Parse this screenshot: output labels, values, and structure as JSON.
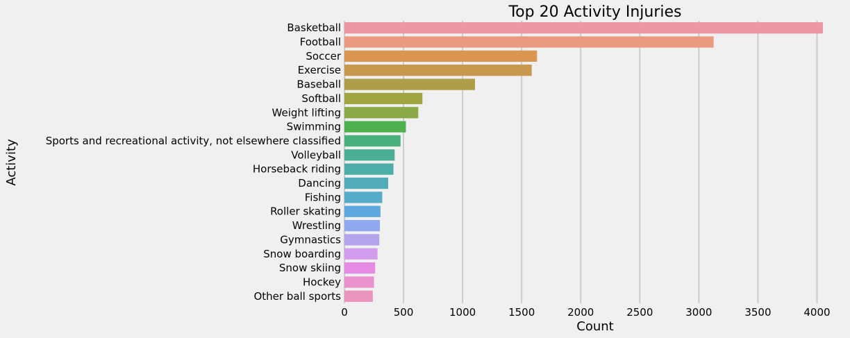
{
  "chart_data": {
    "type": "bar",
    "orientation": "horizontal",
    "title": "Top 20 Activity Injuries",
    "xlabel": "Count",
    "ylabel": "Activity",
    "xlim": [
      0,
      4250
    ],
    "xticks": [
      0,
      500,
      1000,
      1500,
      2000,
      2500,
      3000,
      3500,
      4000
    ],
    "grid": true,
    "categories": [
      "Basketball",
      "Football",
      "Soccer",
      "Exercise",
      "Baseball",
      "Softball",
      "Weight lifting",
      "Swimming",
      "Sports and recreational activity, not elsewhere classified",
      "Volleyball",
      "Horseback riding",
      "Dancing",
      "Fishing",
      "Roller skating",
      "Wrestling",
      "Gymnastics",
      "Snow boarding",
      "Snow skiing",
      "Hockey",
      "Other ball sports"
    ],
    "values": [
      4050,
      3125,
      1630,
      1585,
      1105,
      660,
      625,
      520,
      475,
      425,
      415,
      370,
      320,
      305,
      300,
      295,
      280,
      260,
      250,
      240
    ],
    "colors": [
      "#ea96a3",
      "#e99a81",
      "#da9552",
      "#c9984f",
      "#ae9d49",
      "#9ea541",
      "#8ba946",
      "#4fb04f",
      "#4ab07e",
      "#4cae94",
      "#4fada8",
      "#52acb7",
      "#55abc8",
      "#5fa8df",
      "#8fa8ee",
      "#b3a3ed",
      "#d29ded",
      "#e58be4",
      "#ea92cd",
      "#e993bd"
    ]
  }
}
